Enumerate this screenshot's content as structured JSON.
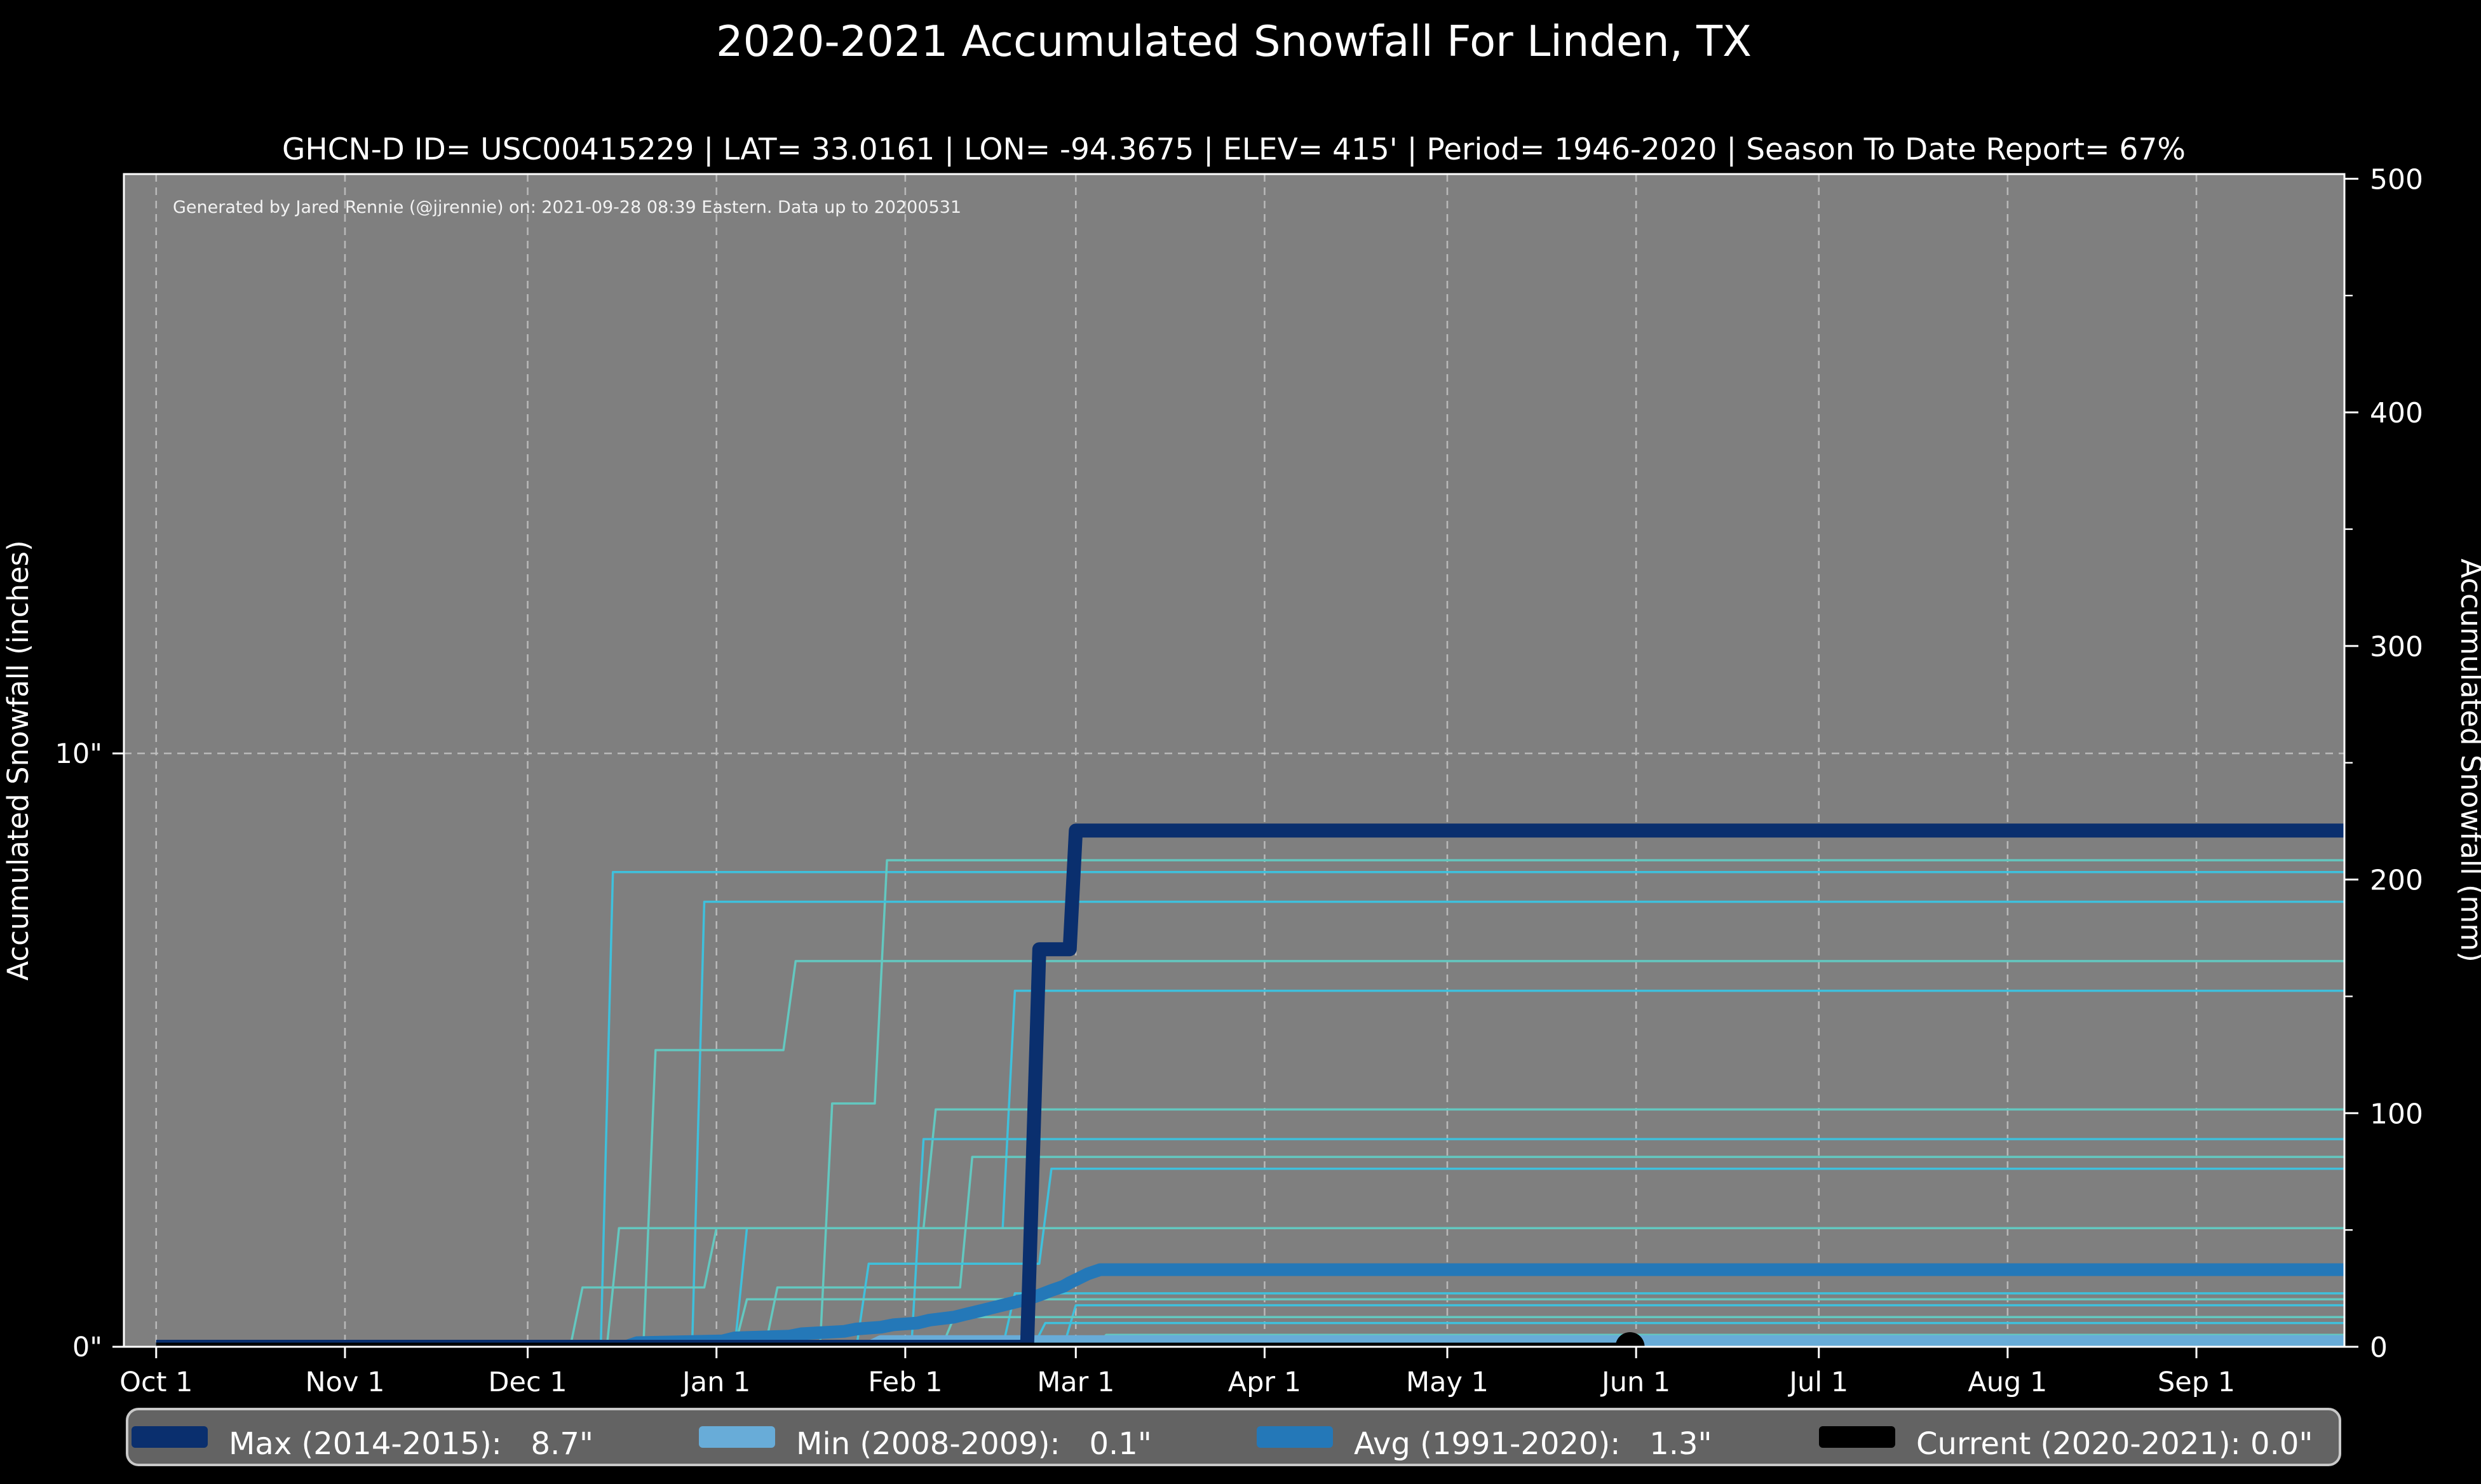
{
  "chart_data": {
    "type": "line",
    "title": "2020-2021 Accumulated Snowfall For Linden, TX",
    "subtitle": "GHCN-D ID= USC00415229 | LAT= 33.0161 | LON= -94.3675 | ELEV= 415' | Period= 1946-2020 | Season To Date Report= 67%",
    "annotation": "Generated by Jared Rennie (@jjrennie) on: 2021-09-28 08:39 Eastern. Data up to 20200531",
    "ylabel_left": "Accumulated Snowfall (inches)",
    "ylabel_right": "Accumulated Snowfall (mm)",
    "x_axis": {
      "unit": "day-of-season (0 = Oct 1)",
      "domain_days": [
        -5.3,
        359.3
      ],
      "ticks": [
        {
          "day": 0,
          "label": "Oct 1"
        },
        {
          "day": 31,
          "label": "Nov 1"
        },
        {
          "day": 61,
          "label": "Dec 1"
        },
        {
          "day": 92,
          "label": "Jan 1"
        },
        {
          "day": 123,
          "label": "Feb 1"
        },
        {
          "day": 151,
          "label": "Mar 1"
        },
        {
          "day": 182,
          "label": "Apr 1"
        },
        {
          "day": 212,
          "label": "May 1"
        },
        {
          "day": 243,
          "label": "Jun 1"
        },
        {
          "day": 273,
          "label": "Jul 1"
        },
        {
          "day": 304,
          "label": "Aug 1"
        },
        {
          "day": 335,
          "label": "Sep 1"
        }
      ],
      "grid": "dashed vertical at each month"
    },
    "y_axis_left": {
      "unit": "inches",
      "range": [
        0,
        19.8
      ],
      "ticks": [
        {
          "value": 0,
          "label": "0\""
        },
        {
          "value": 10,
          "label": "10\""
        }
      ],
      "grid": "dashed horizontal at 10 inches"
    },
    "y_axis_right": {
      "unit": "mm",
      "range": [
        0,
        502
      ],
      "major_ticks": [
        0,
        100,
        200,
        300,
        400,
        500
      ],
      "minor_ticks": [
        50,
        150,
        250,
        350,
        450
      ]
    },
    "colors": {
      "figure_background": "#000000",
      "plot_background": "#7f7f7f",
      "grid": "#c2c2c2",
      "spine": "#ffffff",
      "text": "#ffffff",
      "max": "#0a2f6e",
      "min": "#68acd8",
      "avg": "#2478b8",
      "current": "#000000",
      "historical_a": "#3fc0dc",
      "historical_b": "#63c8c0",
      "legend_background": "#636363",
      "legend_border": "#c9c9c9"
    },
    "series": {
      "max": {
        "name": "Max (2014-2015)",
        "final_value_inches": 8.7,
        "color": "#0a2f6e",
        "width": 22,
        "points": [
          [
            0,
            0
          ],
          [
            143,
            0
          ],
          [
            145,
            6.7
          ],
          [
            150,
            6.7
          ],
          [
            151,
            8.7
          ],
          [
            365,
            8.7
          ]
        ]
      },
      "min": {
        "name": "Min (2008-2009)",
        "final_value_inches": 0.1,
        "color": "#68acd8",
        "width": 18,
        "points": [
          [
            0,
            0
          ],
          [
            117,
            0
          ],
          [
            119,
            0.1
          ],
          [
            365,
            0.1
          ]
        ]
      },
      "avg": {
        "name": "Avg (1991-2020)",
        "final_value_inches": 1.3,
        "color": "#2478b8",
        "width": 20,
        "points": [
          [
            0,
            0
          ],
          [
            77,
            0
          ],
          [
            79,
            0.07
          ],
          [
            93,
            0.1
          ],
          [
            95,
            0.15
          ],
          [
            104,
            0.18
          ],
          [
            106,
            0.22
          ],
          [
            113,
            0.26
          ],
          [
            115,
            0.3
          ],
          [
            119,
            0.33
          ],
          [
            121,
            0.37
          ],
          [
            125,
            0.4
          ],
          [
            127,
            0.45
          ],
          [
            131,
            0.5
          ],
          [
            133,
            0.55
          ],
          [
            135,
            0.6
          ],
          [
            137,
            0.65
          ],
          [
            139,
            0.7
          ],
          [
            141,
            0.75
          ],
          [
            143,
            0.8
          ],
          [
            145,
            0.87
          ],
          [
            147,
            0.95
          ],
          [
            149,
            1.02
          ],
          [
            150,
            1.08
          ],
          [
            151,
            1.13
          ],
          [
            152,
            1.18
          ],
          [
            153,
            1.23
          ],
          [
            155,
            1.3
          ],
          [
            365,
            1.3
          ]
        ]
      },
      "current": {
        "name": "Current (2020-2021)",
        "final_value_inches": 0.0,
        "color": "#000000",
        "width": 13,
        "points": [
          [
            0,
            0
          ],
          [
            242,
            0
          ]
        ],
        "end_marker_day": 242,
        "end_marker_radius": 23
      },
      "historical": [
        {
          "points": [
            [
              0,
              0
            ],
            [
              73,
              0
            ],
            [
              75,
              8.0
            ],
            [
              365,
              8.0
            ]
          ]
        },
        {
          "points": [
            [
              0,
              0
            ],
            [
              109,
              0
            ],
            [
              111,
              4.1
            ],
            [
              118,
              4.1
            ],
            [
              120,
              8.2
            ],
            [
              365,
              8.2
            ]
          ]
        },
        {
          "points": [
            [
              0,
              0
            ],
            [
              88,
              0
            ],
            [
              90,
              7.5
            ],
            [
              365,
              7.5
            ]
          ]
        },
        {
          "points": [
            [
              0,
              0
            ],
            [
              80,
              0
            ],
            [
              82,
              5.0
            ],
            [
              103,
              5.0
            ],
            [
              105,
              6.5
            ],
            [
              365,
              6.5
            ]
          ]
        },
        {
          "points": [
            [
              0,
              0
            ],
            [
              95,
              0
            ],
            [
              97,
              2.0
            ],
            [
              139,
              2.0
            ],
            [
              141,
              6.0
            ],
            [
              365,
              6.0
            ]
          ]
        },
        {
          "points": [
            [
              0,
              0
            ],
            [
              74,
              0
            ],
            [
              76,
              2.0
            ],
            [
              126,
              2.0
            ],
            [
              128,
              4.0
            ],
            [
              365,
              4.0
            ]
          ]
        },
        {
          "points": [
            [
              0,
              0
            ],
            [
              124,
              0
            ],
            [
              126,
              3.5
            ],
            [
              365,
              3.5
            ]
          ]
        },
        {
          "points": [
            [
              0,
              0
            ],
            [
              100,
              0
            ],
            [
              102,
              1.0
            ],
            [
              132,
              1.0
            ],
            [
              134,
              3.2
            ],
            [
              365,
              3.2
            ]
          ]
        },
        {
          "points": [
            [
              0,
              0
            ],
            [
              115,
              0
            ],
            [
              117,
              1.4
            ],
            [
              145,
              1.4
            ],
            [
              147,
              3.0
            ],
            [
              365,
              3.0
            ]
          ]
        },
        {
          "points": [
            [
              0,
              0
            ],
            [
              68,
              0
            ],
            [
              70,
              1.0
            ],
            [
              90,
              1.0
            ],
            [
              92,
              2.0
            ],
            [
              365,
              2.0
            ]
          ]
        },
        {
          "points": [
            [
              0,
              0
            ],
            [
              139,
              0
            ],
            [
              141,
              0.9
            ],
            [
              365,
              0.9
            ]
          ]
        },
        {
          "points": [
            [
              0,
              0
            ],
            [
              95,
              0
            ],
            [
              97,
              0.8
            ],
            [
              365,
              0.8
            ]
          ]
        },
        {
          "points": [
            [
              0,
              0
            ],
            [
              149,
              0
            ],
            [
              151,
              0.7
            ],
            [
              365,
              0.7
            ]
          ]
        },
        {
          "points": [
            [
              0,
              0
            ],
            [
              129,
              0
            ],
            [
              131,
              0.5
            ],
            [
              365,
              0.5
            ]
          ]
        },
        {
          "points": [
            [
              0,
              0
            ],
            [
              144,
              0
            ],
            [
              146,
              0.4
            ],
            [
              365,
              0.4
            ]
          ]
        },
        {
          "points": [
            [
              0,
              0
            ],
            [
              154,
              0
            ],
            [
              156,
              0.2
            ],
            [
              365,
              0.2
            ]
          ]
        }
      ]
    },
    "legend": {
      "position": "bottom",
      "items": [
        {
          "label": "Max (2014-2015):   8.7\"",
          "color": "#0a2f6e"
        },
        {
          "label": "Min (2008-2009):   0.1\"",
          "color": "#68acd8"
        },
        {
          "label": "Avg (1991-2020):   1.3\"",
          "color": "#2478b8"
        },
        {
          "label": "Current (2020-2021): 0.0\"",
          "color": "#000000"
        }
      ]
    }
  }
}
